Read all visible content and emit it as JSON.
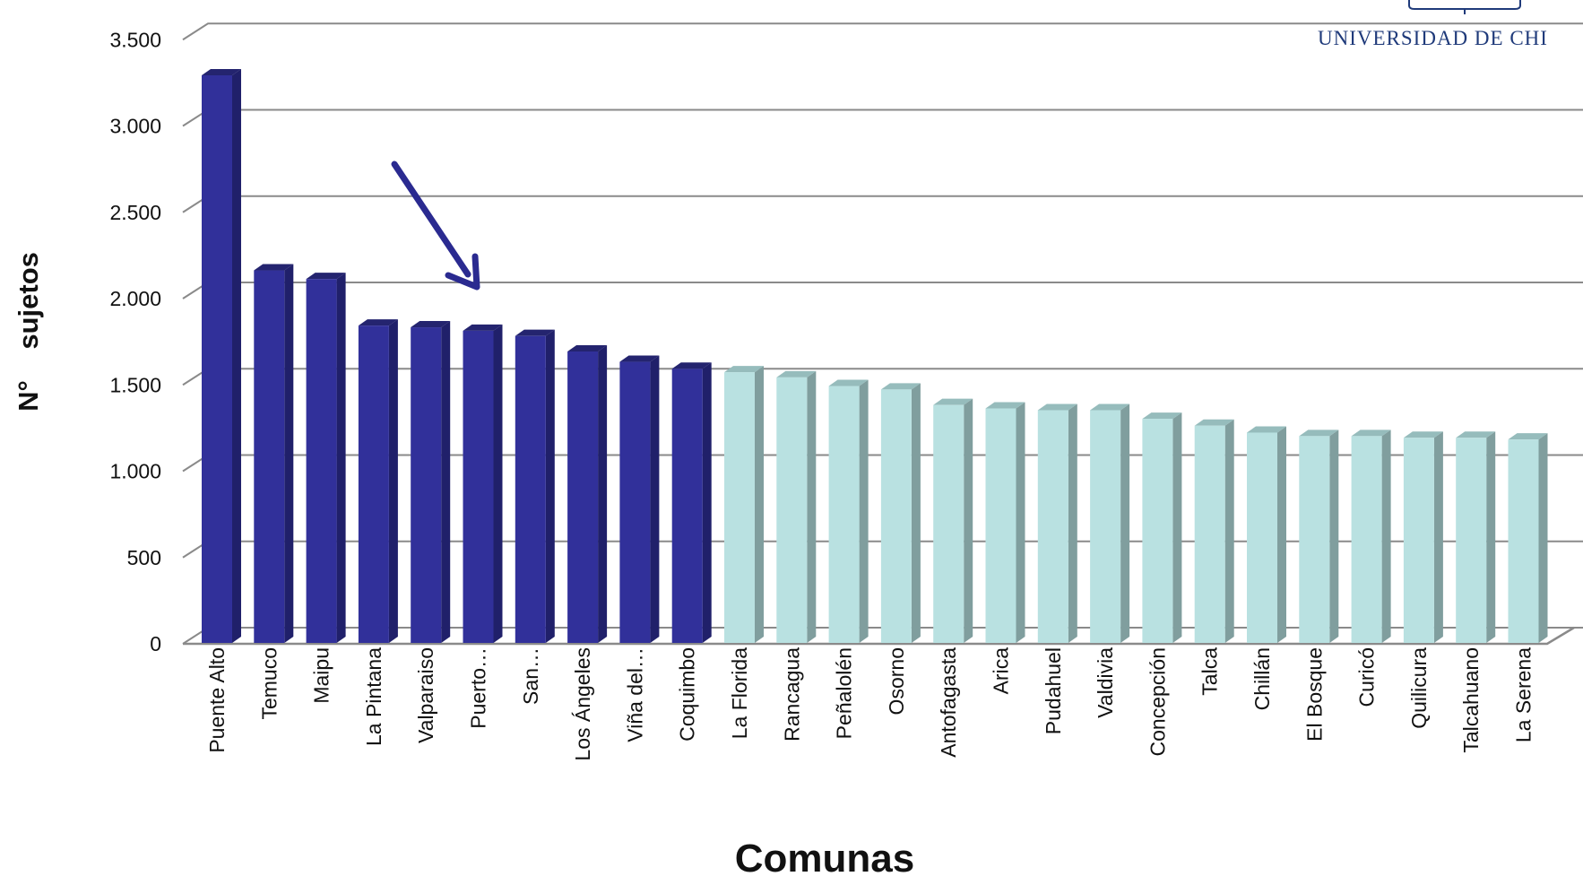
{
  "logo": {
    "text": "UNIVERSIDAD DE CHI"
  },
  "chart_data": {
    "type": "bar",
    "xlabel": "Comunas",
    "ylabel": "N°    sujetos",
    "ylim": [
      0,
      3500
    ],
    "yticks": [
      0,
      500,
      1000,
      1500,
      2000,
      2500,
      3000,
      3500
    ],
    "ytick_labels": [
      "0",
      "500",
      "1.000",
      "1.500",
      "2.000",
      "2.500",
      "3.000",
      "3.500"
    ],
    "grid": true,
    "legend": "none",
    "categories": [
      "Puente Alto",
      "Temuco",
      "Maipu",
      "La Pintana",
      "Valparaiso",
      "Puerto…",
      "San…",
      "Los Ángeles",
      "Viña del…",
      "Coquimbo",
      "La Florida",
      "Rancagua",
      "Peñalolén",
      "Osorno",
      "Antofagasta",
      "Arica",
      "Pudahuel",
      "Valdivia",
      "Concepción",
      "Talca",
      "Chillán",
      "El Bosque",
      "Curicó",
      "Quilicura",
      "Talcahuano",
      "La Serena"
    ],
    "values": [
      3200,
      2070,
      2020,
      1750,
      1740,
      1720,
      1690,
      1600,
      1540,
      1500,
      1480,
      1450,
      1400,
      1380,
      1290,
      1270,
      1260,
      1260,
      1210,
      1170,
      1130,
      1110,
      1110,
      1100,
      1100,
      1090
    ],
    "highlight_count": 10,
    "colors": {
      "highlight_front": "#31309a",
      "highlight_side": "#20206a",
      "highlight_top": "#24246f",
      "normal_front": "#b9e1e1",
      "normal_side": "#809e9e",
      "normal_top": "#96bcbc",
      "grid": "#8a8a8a",
      "arrow": "#2a2a90"
    },
    "annotation": {
      "type": "arrow",
      "points_to": "Puerto…"
    }
  }
}
